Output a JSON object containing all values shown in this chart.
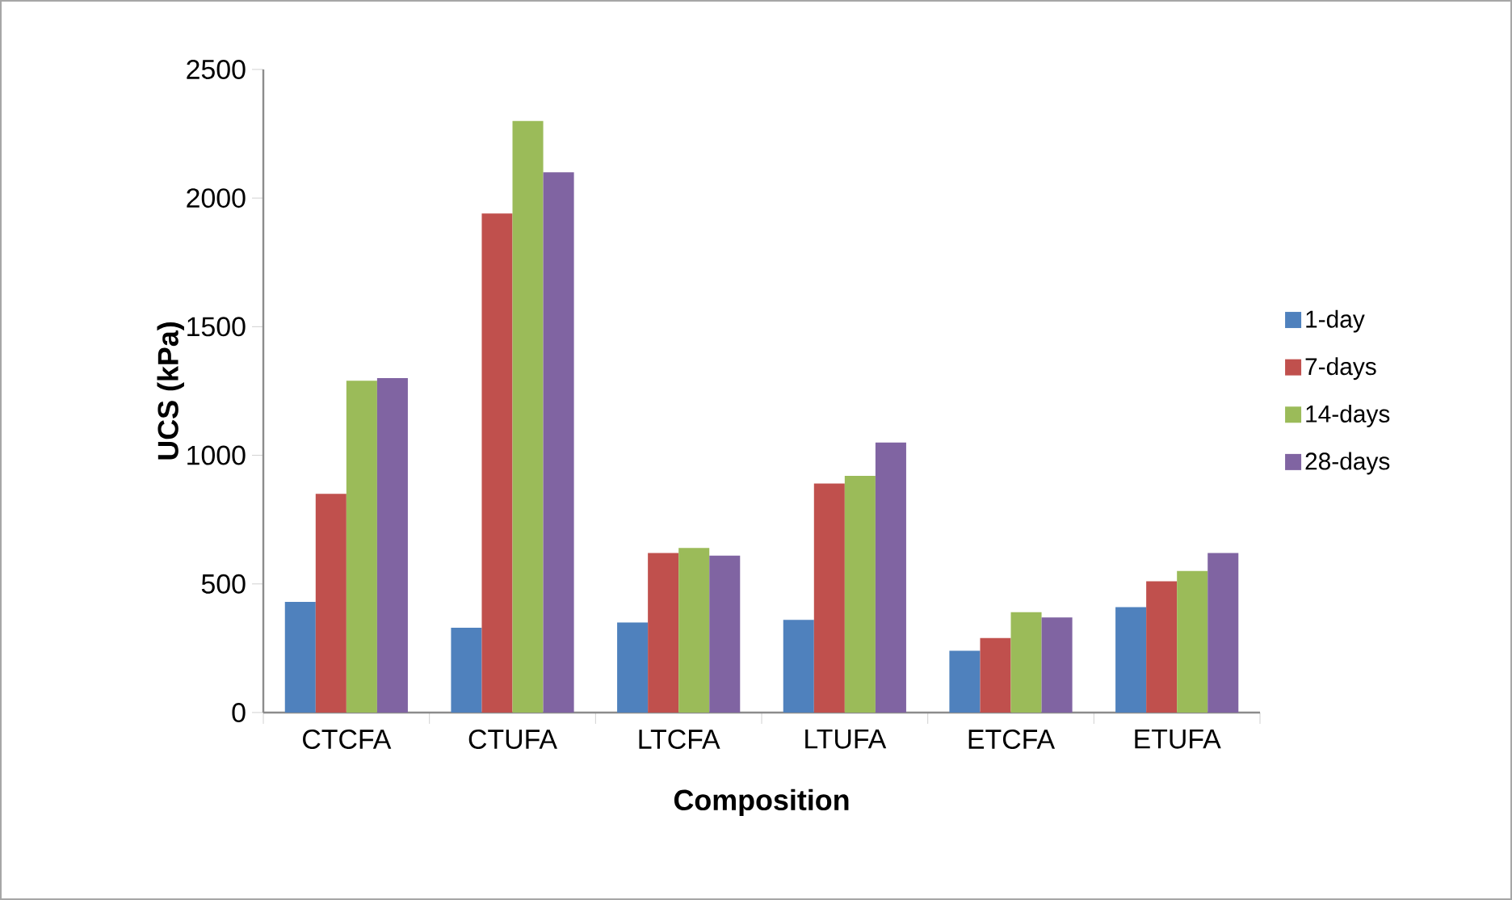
{
  "chart_data": {
    "type": "bar",
    "xlabel": "Composition",
    "ylabel": "UCS (kPa)",
    "categories": [
      "CTCFA",
      "CTUFA",
      "LTCFA",
      "LTUFA",
      "ETCFA",
      "ETUFA"
    ],
    "series": [
      {
        "name": "1-day",
        "color": "#4f81bd",
        "values": [
          430,
          330,
          350,
          360,
          240,
          410
        ]
      },
      {
        "name": "7-days",
        "color": "#c0504d",
        "values": [
          850,
          1940,
          620,
          890,
          290,
          510
        ]
      },
      {
        "name": "14-days",
        "color": "#9bbb59",
        "values": [
          1290,
          2300,
          640,
          920,
          390,
          550
        ]
      },
      {
        "name": "28-days",
        "color": "#8064a2",
        "values": [
          1300,
          2100,
          610,
          1050,
          370,
          620
        ]
      }
    ],
    "ylim": [
      0,
      2500
    ],
    "yticks": [
      0,
      500,
      1000,
      1500,
      2000,
      2500
    ],
    "legend": "right",
    "grid": false
  }
}
